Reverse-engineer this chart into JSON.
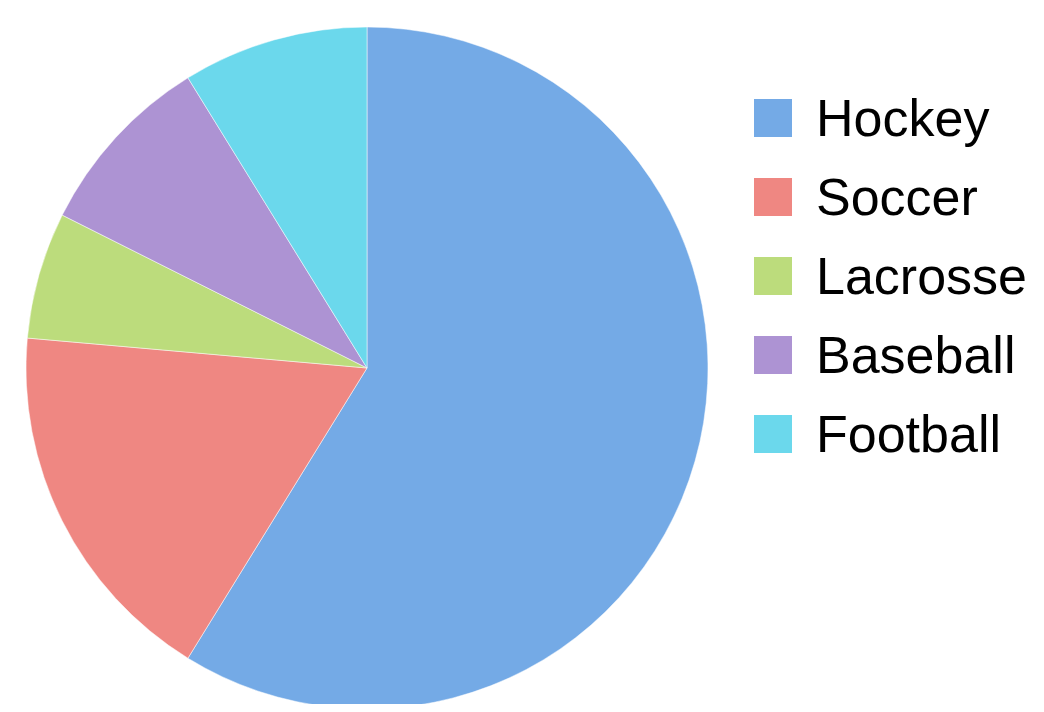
{
  "chart_data": {
    "type": "pie",
    "categories": [
      "Hockey",
      "Soccer",
      "Lacrosse",
      "Baseball",
      "Football"
    ],
    "values": [
      58.8,
      17.6,
      6,
      8.8,
      8.8
    ],
    "colors": [
      "#74aae6",
      "#ef8782",
      "#bcdc7c",
      "#ad93d3",
      "#6bd8ec"
    ],
    "legend": "right"
  }
}
